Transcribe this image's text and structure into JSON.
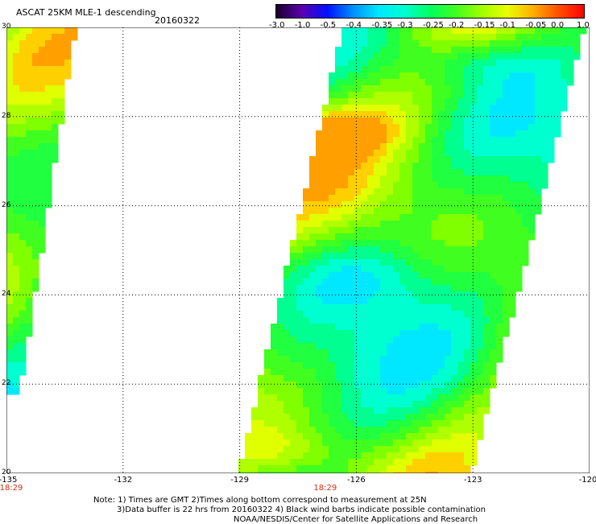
{
  "header": {
    "title": "ASCAT 25KM MLE-1 descending",
    "date": "20160322"
  },
  "colorbar": {
    "labels": [
      "-3.0",
      "-1.0",
      "-0.5",
      "-0.4",
      "-0.35",
      "-0.3",
      "-0.25",
      "-0.2",
      "-0.15",
      "-0.1",
      "-0.05",
      "0.0",
      "1.0"
    ],
    "colors": [
      "#1a0028",
      "#5a00b0",
      "#0010ff",
      "#0090ff",
      "#00e8ff",
      "#00ffd0",
      "#00ff60",
      "#40ff20",
      "#a0ff00",
      "#e8ff00",
      "#ffb000",
      "#ff5000",
      "#ff0000"
    ]
  },
  "axes": {
    "lon_ticks": [
      "-135",
      "-132",
      "-129",
      "-126",
      "-123",
      "-120"
    ],
    "lat_ticks": [
      "30",
      "28",
      "26",
      "24",
      "22",
      "20"
    ],
    "lon_range": [
      -135,
      -120
    ],
    "lat_range": [
      20,
      30
    ]
  },
  "time_labels": [
    {
      "lon": -135,
      "text": "18:29"
    },
    {
      "lon": -126.8,
      "text": "18:29"
    }
  ],
  "notes": {
    "line1": "Note: 1) Times are GMT 2)Times along bottom correspond to measurement at 25N",
    "line2": "3)Data buffer is 22 hrs from 20160322 4) Black wind barbs indicate possible contamination",
    "line3": "NOAA/NESDIS/Center for Satellite Applications and Research"
  }
}
